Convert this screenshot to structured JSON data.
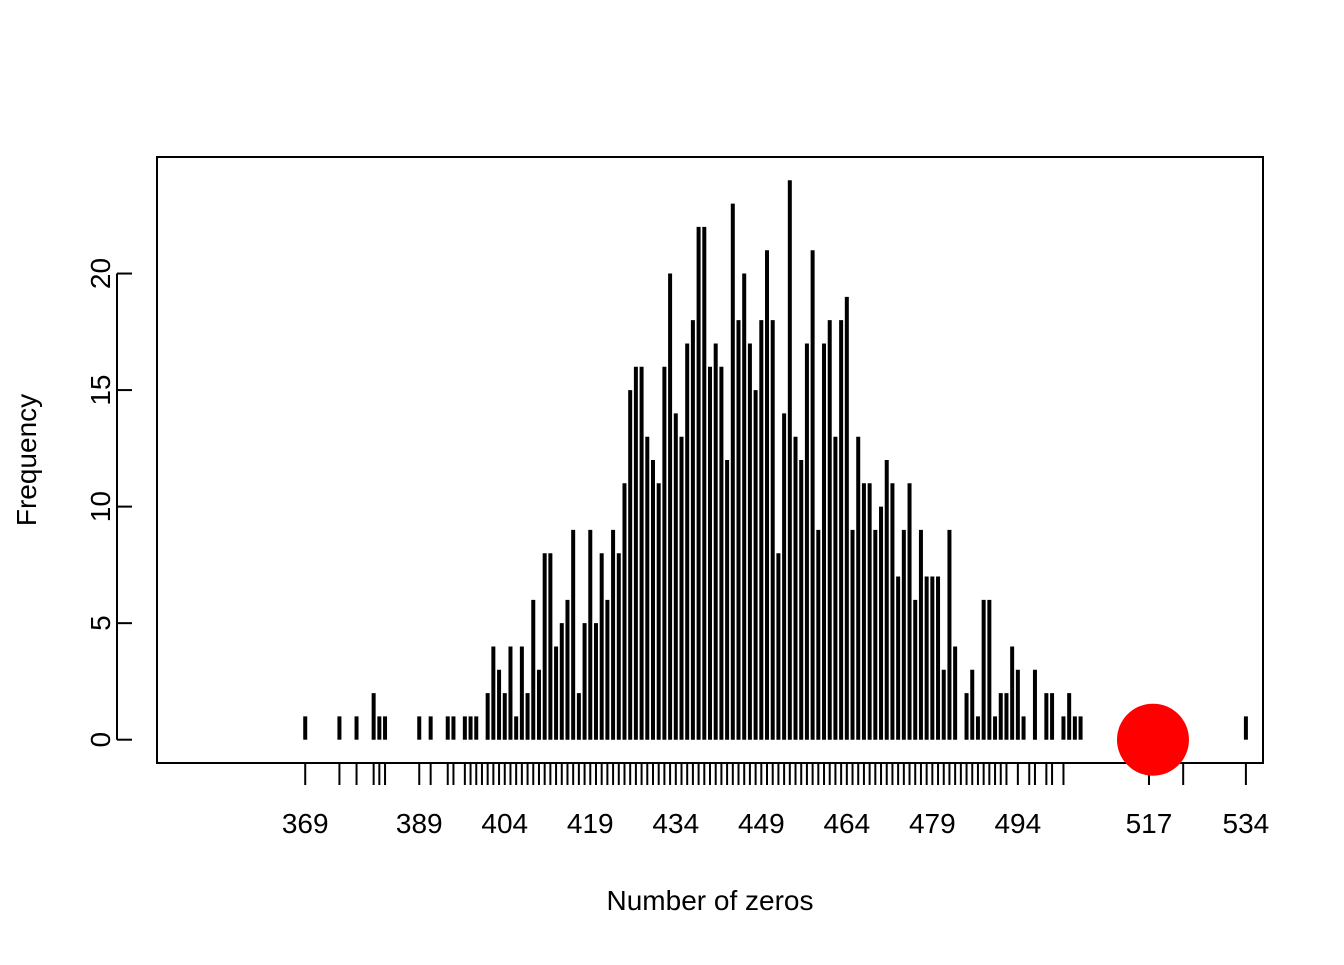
{
  "chart_data": {
    "type": "bar",
    "title": "",
    "xlabel": "Number of zeros",
    "ylabel": "Frequency",
    "xlim": [
      343,
      537
    ],
    "ylim": [
      -1,
      25
    ],
    "y_ticks": [
      0,
      5,
      10,
      15,
      20
    ],
    "x_tick_labels": [
      "369",
      "389",
      "404",
      "419",
      "434",
      "449",
      "464",
      "479",
      "494",
      "517",
      "534"
    ],
    "x_minor_ticks": [
      369,
      375,
      378,
      381,
      382,
      383,
      389,
      391,
      394,
      395,
      397,
      398,
      399,
      400,
      401,
      402,
      403,
      404,
      405,
      406,
      407,
      408,
      409,
      410,
      411,
      412,
      413,
      414,
      415,
      416,
      417,
      418,
      419,
      420,
      421,
      422,
      423,
      424,
      425,
      426,
      427,
      428,
      429,
      430,
      431,
      432,
      433,
      434,
      435,
      436,
      437,
      438,
      439,
      440,
      441,
      442,
      443,
      444,
      445,
      446,
      447,
      448,
      449,
      450,
      451,
      452,
      453,
      454,
      455,
      456,
      457,
      458,
      459,
      460,
      461,
      462,
      463,
      464,
      465,
      466,
      467,
      468,
      469,
      470,
      471,
      472,
      473,
      474,
      475,
      476,
      477,
      478,
      479,
      480,
      481,
      482,
      483,
      484,
      485,
      486,
      487,
      488,
      489,
      490,
      491,
      492,
      494,
      496,
      497,
      499,
      500,
      502,
      517,
      523,
      534
    ],
    "bar_color": "#000000",
    "highlight": {
      "x": 517,
      "y": 0,
      "color": "#ff0000"
    },
    "bars": [
      [
        369,
        1
      ],
      [
        375,
        1
      ],
      [
        378,
        1
      ],
      [
        381,
        2
      ],
      [
        382,
        1
      ],
      [
        383,
        1
      ],
      [
        389,
        1
      ],
      [
        391,
        1
      ],
      [
        394,
        1
      ],
      [
        395,
        1
      ],
      [
        397,
        1
      ],
      [
        398,
        1
      ],
      [
        399,
        1
      ],
      [
        401,
        2
      ],
      [
        402,
        4
      ],
      [
        403,
        3
      ],
      [
        404,
        2
      ],
      [
        405,
        4
      ],
      [
        406,
        1
      ],
      [
        407,
        4
      ],
      [
        408,
        2
      ],
      [
        409,
        6
      ],
      [
        410,
        3
      ],
      [
        411,
        8
      ],
      [
        412,
        8
      ],
      [
        413,
        4
      ],
      [
        414,
        5
      ],
      [
        415,
        6
      ],
      [
        416,
        9
      ],
      [
        417,
        2
      ],
      [
        418,
        5
      ],
      [
        419,
        9
      ],
      [
        420,
        5
      ],
      [
        421,
        8
      ],
      [
        422,
        6
      ],
      [
        423,
        9
      ],
      [
        424,
        8
      ],
      [
        425,
        11
      ],
      [
        426,
        15
      ],
      [
        427,
        16
      ],
      [
        428,
        16
      ],
      [
        429,
        13
      ],
      [
        430,
        12
      ],
      [
        431,
        11
      ],
      [
        432,
        16
      ],
      [
        433,
        20
      ],
      [
        434,
        14
      ],
      [
        435,
        13
      ],
      [
        436,
        17
      ],
      [
        437,
        18
      ],
      [
        438,
        22
      ],
      [
        439,
        22
      ],
      [
        440,
        16
      ],
      [
        441,
        17
      ],
      [
        442,
        16
      ],
      [
        443,
        12
      ],
      [
        444,
        23
      ],
      [
        445,
        18
      ],
      [
        446,
        20
      ],
      [
        447,
        17
      ],
      [
        448,
        15
      ],
      [
        449,
        18
      ],
      [
        450,
        21
      ],
      [
        451,
        18
      ],
      [
        452,
        8
      ],
      [
        453,
        14
      ],
      [
        454,
        24
      ],
      [
        455,
        13
      ],
      [
        456,
        12
      ],
      [
        457,
        17
      ],
      [
        458,
        21
      ],
      [
        459,
        9
      ],
      [
        460,
        17
      ],
      [
        461,
        18
      ],
      [
        462,
        13
      ],
      [
        463,
        18
      ],
      [
        464,
        19
      ],
      [
        465,
        9
      ],
      [
        466,
        13
      ],
      [
        467,
        11
      ],
      [
        468,
        11
      ],
      [
        469,
        9
      ],
      [
        470,
        10
      ],
      [
        471,
        12
      ],
      [
        472,
        11
      ],
      [
        473,
        7
      ],
      [
        474,
        9
      ],
      [
        475,
        11
      ],
      [
        476,
        6
      ],
      [
        477,
        9
      ],
      [
        478,
        7
      ],
      [
        479,
        7
      ],
      [
        480,
        7
      ],
      [
        481,
        3
      ],
      [
        482,
        9
      ],
      [
        483,
        4
      ],
      [
        485,
        2
      ],
      [
        486,
        3
      ],
      [
        487,
        1
      ],
      [
        488,
        6
      ],
      [
        489,
        6
      ],
      [
        490,
        1
      ],
      [
        491,
        2
      ],
      [
        492,
        2
      ],
      [
        493,
        4
      ],
      [
        494,
        3
      ],
      [
        495,
        1
      ],
      [
        497,
        3
      ],
      [
        499,
        2
      ],
      [
        500,
        2
      ],
      [
        502,
        1
      ],
      [
        503,
        2
      ],
      [
        504,
        1
      ],
      [
        505,
        1
      ],
      [
        534,
        1
      ]
    ]
  }
}
